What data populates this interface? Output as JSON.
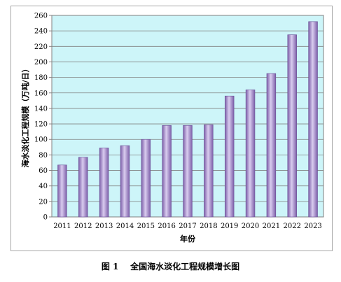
{
  "chart_data": {
    "type": "bar",
    "categories": [
      "2011",
      "2012",
      "2013",
      "2014",
      "2015",
      "2016",
      "2017",
      "2018",
      "2019",
      "2020",
      "2021",
      "2022",
      "2023"
    ],
    "values": [
      67,
      77,
      89,
      92,
      100,
      118,
      118,
      119,
      156,
      164,
      185,
      235,
      252
    ],
    "xlabel": "年份",
    "ylabel": "海水淡化工程规模（万吨/日）",
    "ylim": [
      0,
      260
    ],
    "yticks": [
      0,
      20,
      40,
      60,
      80,
      100,
      120,
      140,
      160,
      180,
      200,
      220,
      240,
      260
    ],
    "grid": true,
    "legend": "none",
    "colors": {
      "plot_background": "#cdf5f9",
      "bar_fill_dark": "#7d5fa9",
      "bar_fill_light": "#d9ccef",
      "gridline": "#808080"
    }
  },
  "caption": "图 1    全国海水淡化工程规模增长图"
}
